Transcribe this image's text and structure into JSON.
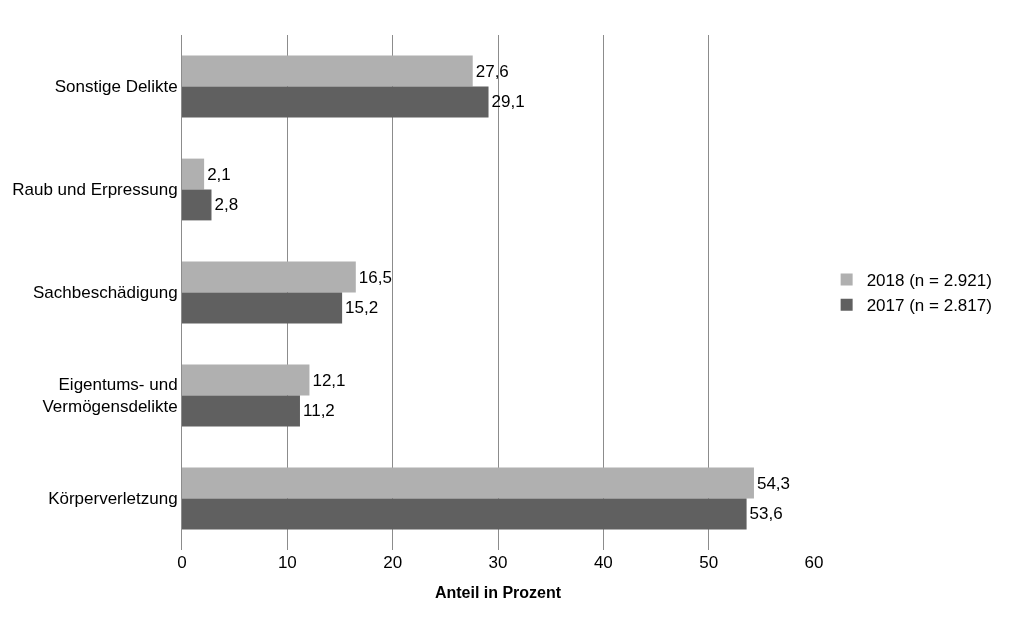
{
  "chart_data": {
    "type": "bar",
    "orientation": "horizontal",
    "xlabel": "Anteil in Prozent",
    "categories": [
      "Sonstige Delikte",
      "Raub und Erpressung",
      "Sachbeschädigung",
      "Eigentums- und\nVermögensdelikte",
      "Körperverletzung"
    ],
    "series": [
      {
        "name": "2018 (n = 2.921)",
        "color": "#b0b0b0",
        "values": [
          27.6,
          2.1,
          16.5,
          12.1,
          54.3
        ],
        "value_labels": [
          "27,6",
          "2,1",
          "16,5",
          "12,1",
          "54,3"
        ]
      },
      {
        "name": "2017 (n = 2.817)",
        "color": "#606060",
        "values": [
          29.1,
          2.8,
          15.2,
          11.2,
          53.6
        ],
        "value_labels": [
          "29,1",
          "2,8",
          "15,2",
          "11,2",
          "53,6"
        ]
      }
    ],
    "xlim": [
      0,
      60
    ],
    "xticks": [
      0,
      10,
      20,
      30,
      40,
      50,
      60
    ],
    "grid": "x",
    "legend": "right"
  }
}
